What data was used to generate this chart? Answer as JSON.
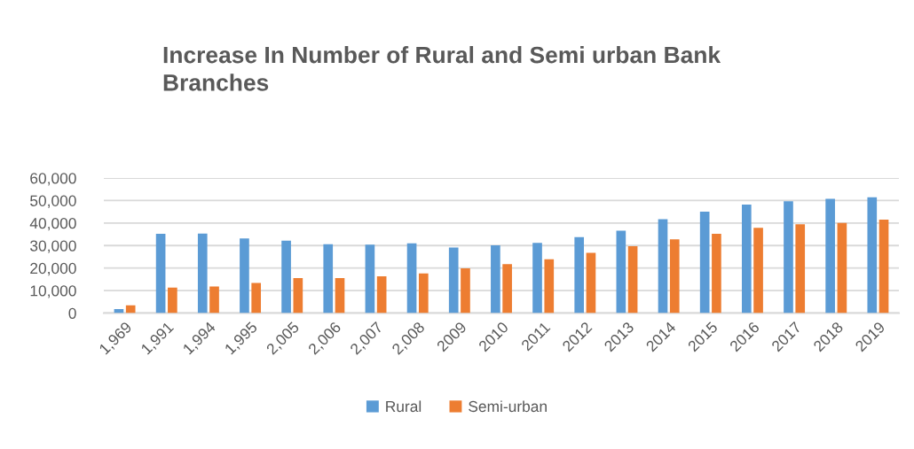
{
  "chart_data": {
    "type": "bar",
    "title": "Increase In Number of Rural and Semi urban Bank\nBranches",
    "categories": [
      "1,969",
      "1,991",
      "1,994",
      "1,995",
      "2,005",
      "2,006",
      "2,007",
      "2,008",
      "2009",
      "2010",
      "2011",
      "2012",
      "2013",
      "2014",
      "2015",
      "2016",
      "2017",
      "2018",
      "2019"
    ],
    "series": [
      {
        "name": "Rural",
        "color": "#5b9bd5",
        "values": [
          1800,
          35200,
          35300,
          33100,
          32200,
          30600,
          30400,
          31000,
          29100,
          30100,
          31200,
          33700,
          36600,
          41700,
          45000,
          48200,
          49700,
          50800,
          51400
        ]
      },
      {
        "name": "Semi-urban",
        "color": "#ed7d31",
        "values": [
          3400,
          11300,
          11800,
          13400,
          15500,
          15500,
          16300,
          17600,
          19900,
          21700,
          23900,
          26800,
          29700,
          32800,
          35200,
          37900,
          39400,
          40000,
          41500
        ]
      }
    ],
    "ylim": [
      0,
      60000
    ],
    "yticks": [
      {
        "value": 0,
        "label": "0"
      },
      {
        "value": 10000,
        "label": "10,000"
      },
      {
        "value": 20000,
        "label": "20,000"
      },
      {
        "value": 30000,
        "label": "30,000"
      },
      {
        "value": 40000,
        "label": "40,000"
      },
      {
        "value": 50000,
        "label": "50,000"
      },
      {
        "value": 60000,
        "label": "60,000"
      }
    ],
    "grid": "y",
    "legend": "bottom"
  }
}
